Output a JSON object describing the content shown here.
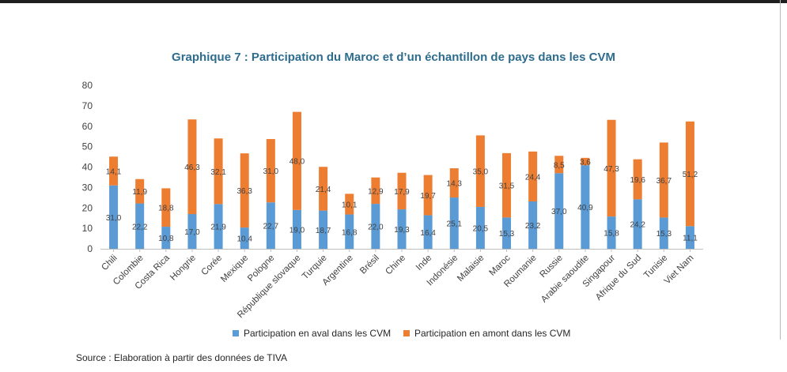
{
  "chart_data": {
    "type": "bar",
    "stacked": true,
    "title": "Graphique 7 : Participation du Maroc et d’un échantillon de pays dans les CVM",
    "xlabel": "",
    "ylabel": "",
    "ylim": [
      0,
      80
    ],
    "yticks": [
      "0",
      "10",
      "20",
      "30",
      "40",
      "50",
      "60",
      "70",
      "80"
    ],
    "categories": [
      "Chili",
      "Colombie",
      "Costa Rica",
      "Hongrie",
      "Corée",
      "Mexique",
      "Pologne",
      "République slovaque",
      "Turquie",
      "Argentine",
      "Brésil",
      "Chine",
      "Inde",
      "Indonésie",
      "Malaisie",
      "Maroc",
      "Roumanie",
      "Russie",
      "Arabie saoudite",
      "Singapour",
      "Afrique du Sud",
      "Tunisie",
      "Viet Nam"
    ],
    "series": [
      {
        "name": "Participation en aval dans les CVM",
        "color": "#5b9bd5",
        "values": [
          31.0,
          22.2,
          10.8,
          17.0,
          21.9,
          10.4,
          22.7,
          19.0,
          18.7,
          16.8,
          22.0,
          19.3,
          16.4,
          25.1,
          20.5,
          15.3,
          23.2,
          37.0,
          40.9,
          15.8,
          24.2,
          15.3,
          11.1
        ],
        "labels": [
          "31,0",
          "22,2",
          "10,8",
          "17,0",
          "21,9",
          "10,4",
          "22,7",
          "19,0",
          "18,7",
          "16,8",
          "22,0",
          "19,3",
          "16,4",
          "25,1",
          "20,5",
          "15,3",
          "23,2",
          "37,0",
          "40,9",
          "15,8",
          "24,2",
          "15,3",
          "11,1"
        ]
      },
      {
        "name": "Participation en amont dans les CVM",
        "color": "#ed7d31",
        "values": [
          14.1,
          11.9,
          18.8,
          46.3,
          32.1,
          36.3,
          31.0,
          48.0,
          21.4,
          10.1,
          12.9,
          17.9,
          19.7,
          14.3,
          35.0,
          31.5,
          24.4,
          8.5,
          3.6,
          47.3,
          19.6,
          36.7,
          51.2
        ],
        "labels": [
          "14,1",
          "11,9",
          "18,8",
          "46,3",
          "32,1",
          "36,3",
          "31,0",
          "48,0",
          "21,4",
          "10,1",
          "12,9",
          "17,9",
          "19,7",
          "14,3",
          "35,0",
          "31,5",
          "24,4",
          "8,5",
          "3,6",
          "47,3",
          "19,6",
          "36,7",
          "51,2"
        ]
      }
    ],
    "grid": false,
    "legend_position": "bottom"
  },
  "source": "Source : Elaboration à partir des données de TIVA"
}
